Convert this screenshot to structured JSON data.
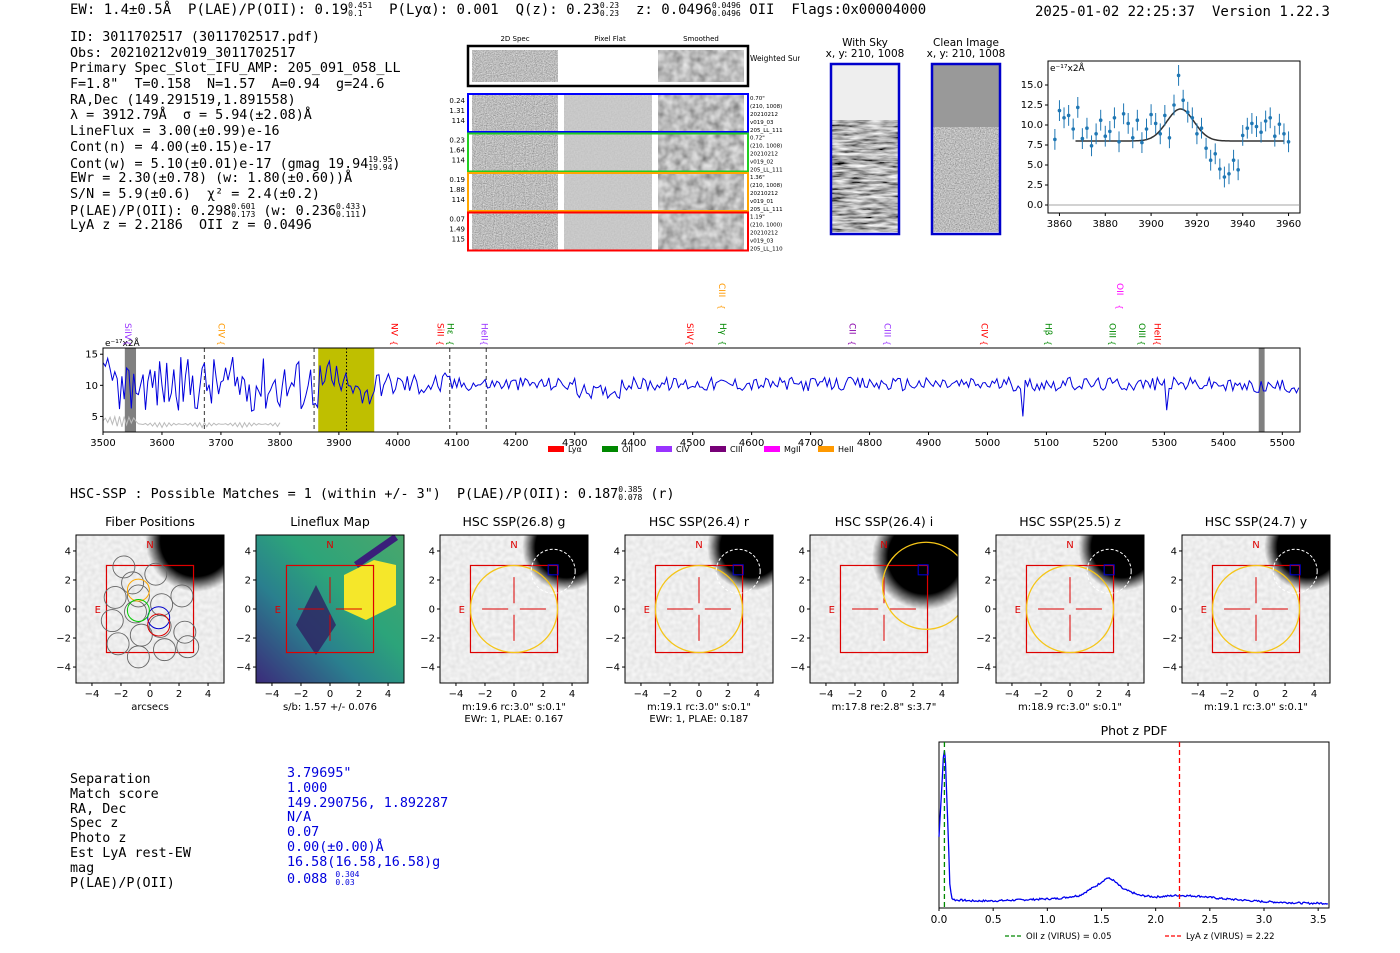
{
  "header": {
    "ew": "EW: 1.4±0.5Å",
    "plae_label": "P(LAE)/P(OII): 0.19",
    "plae_sup": "0.451",
    "plae_sub": "0.1",
    "plya": "P(Lyα): 0.001",
    "qz_label": "Q(z): 0.23",
    "qz_sup": "0.23",
    "qz_sub": "0.23",
    "z_label": "z: 0.0496",
    "z_sup": "0.0496",
    "z_sub": "0.0496",
    "z_line": "OII",
    "flags": "Flags:0x00004000",
    "datetime": "2025-01-02 22:25:37",
    "version": "Version 1.22.3"
  },
  "info": {
    "id": "ID: 3011702517 (3011702517.pdf)",
    "obs": "Obs: 20210212v019_3011702517",
    "primary": "Primary Spec_Slot_IFU_AMP: 205_091_058_LL",
    "params": "F=1.8\"  T=0.158  N=1.57  A=0.94  g=24.6",
    "radec": "RA,Dec (149.291519,1.891558)",
    "lambda": "λ = 3912.79Å  σ = 5.94(±2.08)Å",
    "lineflux": "LineFlux = 3.00(±0.99)e-16",
    "contn": "Cont(n) = 4.00(±0.15)e-17",
    "contw_main": "Cont(w) = 5.10(±0.01)e-17 (gmag 19.94",
    "contw_sup": "19.95",
    "contw_sub": "19.94",
    "contw_end": ")",
    "ewr": "EWr = 2.30(±0.78) (w: 1.80(±0.60))Å",
    "sn": "S/N = 5.9(±0.6)  χ² = 2.4(±0.2)",
    "plae_main": "P(LAE)/P(OII): 0.298",
    "plae_sup": "0.601",
    "plae_sub": "0.173",
    "plae_mid": " (w: 0.236",
    "plae_w_sup": "0.433",
    "plae_w_sub": "0.111",
    "plae_end": ")",
    "lya_z": "LyA z = 2.2186  OII z = 0.0496"
  },
  "cutouts": {
    "col_titles": [
      "2D Spec",
      "Pixel Flat",
      "Smoothed"
    ],
    "weighted_sum": "Weighted Sum",
    "rows": [
      {
        "left": [
          "0.24",
          "1.31",
          "114"
        ],
        "right": [
          "0.70\"",
          "(210, 1008)",
          "20210212",
          "v019_03",
          "205_LL_111"
        ],
        "color": "#0000ff"
      },
      {
        "left": [
          "0.23",
          "1.64",
          "114"
        ],
        "right": [
          "0.72\"",
          "(210, 1008)",
          "20210212",
          "v019_02",
          "205_LL_111"
        ],
        "color": "#22cc22"
      },
      {
        "left": [
          "0.19",
          "1.88",
          "114"
        ],
        "right": [
          "1.36\"",
          "(210, 1008)",
          "20210212",
          "v019_01",
          "205_LL_111"
        ],
        "color": "#ffa500"
      },
      {
        "left": [
          "0.07",
          "1.49",
          "115"
        ],
        "right": [
          "1.19\"",
          "(210, 1000)",
          "20210212",
          "v019_03",
          "205_LL_110"
        ],
        "color": "#ff0000"
      }
    ],
    "with_sky_title": "With Sky",
    "with_sky_xy": "x, y: 210, 1008",
    "clean_title": "Clean Image",
    "clean_xy": "x, y: 210, 1008"
  },
  "zoom_plot": {
    "ylabel": "e⁻¹⁷x2Å",
    "xlim": [
      3855,
      3965
    ],
    "ylim": [
      -1,
      18
    ],
    "xticks": [
      3860,
      3880,
      3900,
      3920,
      3940,
      3960
    ],
    "yticks": [
      0.0,
      2.5,
      5.0,
      7.5,
      10.0,
      12.5,
      15.0
    ],
    "ytick_labels": [
      "0.0",
      "2.5",
      "5.0",
      "7.5",
      "10.0",
      "12.5",
      "15.0"
    ],
    "data_x": [
      3858,
      3860,
      3862,
      3864,
      3866,
      3868,
      3870,
      3872,
      3874,
      3876,
      3878,
      3880,
      3882,
      3884,
      3886,
      3888,
      3890,
      3892,
      3894,
      3896,
      3898,
      3900,
      3902,
      3904,
      3906,
      3908,
      3910,
      3912,
      3914,
      3916,
      3918,
      3920,
      3922,
      3924,
      3926,
      3928,
      3930,
      3932,
      3934,
      3936,
      3938,
      3940,
      3942,
      3944,
      3946,
      3948,
      3950,
      3952,
      3954,
      3956,
      3958,
      3960
    ],
    "data_y": [
      8.2,
      11.8,
      10.9,
      11.2,
      9.5,
      12.2,
      8.3,
      9.6,
      7.4,
      8.9,
      10.6,
      8.6,
      9.2,
      10.9,
      7.9,
      11.4,
      10.2,
      8.4,
      10.6,
      7.8,
      9.5,
      11.3,
      10.2,
      8.9,
      11.2,
      8.4,
      12.5,
      16.2,
      13.1,
      11.6,
      10.9,
      8.9,
      9.6,
      7.1,
      5.6,
      6.4,
      4.5,
      3.5,
      3.9,
      5.6,
      4.4,
      8.7,
      9.6,
      10.2,
      9.8,
      9.1,
      10.5,
      10.9,
      8.6,
      10.1,
      8.9,
      7.9
    ],
    "model_base": 8.0,
    "model_amp": 4.0,
    "model_center": 3912.8,
    "model_sigma": 5.94,
    "model_xrange": [
      3867,
      3958
    ]
  },
  "full_spectrum": {
    "ylabel": "e⁻¹⁷x2Å",
    "xlim": [
      3500,
      5530
    ],
    "ylim": [
      2.5,
      16
    ],
    "xticks": [
      3500,
      3600,
      3700,
      3800,
      3900,
      4000,
      4100,
      4200,
      4300,
      4400,
      4500,
      4600,
      4700,
      4800,
      4900,
      5000,
      5100,
      5200,
      5300,
      5400,
      5500
    ],
    "yticks": [
      5,
      10,
      15
    ],
    "lines": [
      {
        "label": "SiIV",
        "x": 3537,
        "color": "#9933ff",
        "level": 1
      },
      {
        "label": "CIV",
        "x": 3696,
        "color": "#ff9900",
        "level": 1
      },
      {
        "label": "NV",
        "x": 3989,
        "color": "#ff0000",
        "level": 1
      },
      {
        "label": "SiII",
        "x": 4067,
        "color": "#ff0000",
        "level": 1
      },
      {
        "label": "Hε",
        "x": 4084,
        "color": "#008800",
        "level": 1
      },
      {
        "label": "HeII",
        "x": 4142,
        "color": "#9933ff",
        "level": 1
      },
      {
        "label": "CIII",
        "x": 4545,
        "color": "#ff9900",
        "level": 2
      },
      {
        "label": "SiIV",
        "x": 4490,
        "color": "#ff0000",
        "level": 1
      },
      {
        "label": "Hγ",
        "x": 4546,
        "color": "#008800",
        "level": 1
      },
      {
        "label": "CII",
        "x": 4766,
        "color": "#8800aa",
        "level": 1
      },
      {
        "label": "CIII",
        "x": 4825,
        "color": "#9933ff",
        "level": 1
      },
      {
        "label": "CIV",
        "x": 4990,
        "color": "#ff0000",
        "level": 1
      },
      {
        "label": "Hβ",
        "x": 5098,
        "color": "#008800",
        "level": 1
      },
      {
        "label": "OII",
        "x": 5220,
        "color": "#ff00ff",
        "level": 2
      },
      {
        "label": "OIII",
        "x": 5207,
        "color": "#008800",
        "level": 1
      },
      {
        "label": "OIII",
        "x": 5257,
        "color": "#008800",
        "level": 1
      },
      {
        "label": "HeII",
        "x": 5283,
        "color": "#ff0000",
        "level": 1
      }
    ],
    "dashed_markers": [
      3672,
      3858,
      4088,
      4150
    ],
    "dotted_marker": 3913,
    "highlight_band": [
      3865,
      3960
    ],
    "gray_bands": [
      [
        3537,
        3556
      ],
      [
        5460,
        5470
      ]
    ],
    "legend": [
      {
        "label": "Lyα",
        "color": "#ff0000"
      },
      {
        "label": "OII",
        "color": "#008800"
      },
      {
        "label": "CIV",
        "color": "#9933ff"
      },
      {
        "label": "CIII",
        "color": "#770077"
      },
      {
        "label": "MgII",
        "color": "#ff00ff"
      },
      {
        "label": "HeII",
        "color": "#ff9900"
      }
    ]
  },
  "hsc": {
    "summary_main": "HSC-SSP : Possible Matches = 1 (within +/- 3\")  P(LAE)/P(OII): 0.187",
    "summary_sup": "0.385",
    "summary_sub": "0.078",
    "summary_end": " (r)",
    "xticks": [
      "−4",
      "−2",
      "0",
      "2",
      "4"
    ],
    "yticks": [
      "4",
      "2",
      "0",
      "−2",
      "−4"
    ],
    "panels": [
      {
        "title": "Fiber Positions",
        "caption1": "arcsecs",
        "caption2": ""
      },
      {
        "title": "Lineflux Map",
        "caption1": "s/b: 1.57 +/- 0.076",
        "caption2": ""
      },
      {
        "title": "HSC SSP(26.8) g",
        "caption1": "m:19.6 rc:3.0\"  s:0.1\"",
        "caption2": "EWr: 1, PLAE: 0.167"
      },
      {
        "title": "HSC SSP(26.4) r",
        "caption1": "m:19.1 rc:3.0\"  s:0.1\"",
        "caption2": "EWr: 1, PLAE: 0.187"
      },
      {
        "title": "HSC SSP(26.4) i",
        "caption1": "m:17.8  re:2.8\"  s:3.7\"",
        "caption2": ""
      },
      {
        "title": "HSC SSP(25.5) z",
        "caption1": "m:18.9 rc:3.0\"  s:0.1\"",
        "caption2": ""
      },
      {
        "title": "HSC SSP(24.7) y",
        "caption1": "m:19.1 rc:3.0\"  s:0.1\"",
        "caption2": ""
      }
    ],
    "north": "N",
    "east": "E"
  },
  "match": {
    "labels": [
      "Separation",
      "Match score",
      "RA, Dec",
      "Spec z",
      "Photo z",
      "Est LyA rest-EW",
      "mag",
      "P(LAE)/P(OII)"
    ],
    "values": [
      "3.79695\"",
      "1.000",
      "149.290756, 1.892287",
      "N/A",
      "0.07",
      "0.00(±0.00)Å",
      "16.58(16.58,16.58)g",
      "0.088"
    ],
    "plae_sup": "0.304",
    "plae_sub": "0.03"
  },
  "chart_data": [
    {
      "type": "scatter",
      "title": "",
      "xlabel": "",
      "ylabel": "e⁻¹⁷x2Å",
      "xlim": [
        3855,
        3965
      ],
      "ylim": [
        -1,
        18
      ],
      "grid": false
    },
    {
      "type": "line",
      "title": "",
      "xlabel": "",
      "ylabel": "e⁻¹⁷x2Å",
      "xlim": [
        3500,
        5530
      ],
      "ylim": [
        2.5,
        16
      ],
      "legend_placement": "bottom-center"
    },
    {
      "type": "line",
      "title": "Phot z PDF",
      "xlim": [
        0,
        3.6
      ],
      "xticks": [
        0.0,
        0.5,
        1.0,
        1.5,
        2.0,
        2.5,
        3.0,
        3.5
      ],
      "xtick_labels": [
        "0.0",
        "0.5",
        "1.0",
        "1.5",
        "2.0",
        "2.5",
        "3.0",
        "3.5"
      ],
      "x": [
        0.0,
        0.02,
        0.04,
        0.05,
        0.06,
        0.08,
        0.1,
        0.12,
        0.15,
        0.2,
        0.3,
        0.5,
        0.7,
        0.9,
        1.1,
        1.3,
        1.45,
        1.55,
        1.6,
        1.7,
        1.85,
        2.0,
        2.2,
        2.4,
        2.6,
        2.8,
        3.0,
        3.2,
        3.4,
        3.6
      ],
      "y": [
        0.45,
        0.7,
        0.95,
        1.0,
        0.92,
        0.55,
        0.15,
        0.06,
        0.05,
        0.05,
        0.045,
        0.045,
        0.05,
        0.055,
        0.06,
        0.08,
        0.14,
        0.19,
        0.18,
        0.12,
        0.08,
        0.07,
        0.08,
        0.075,
        0.06,
        0.05,
        0.04,
        0.035,
        0.03,
        0.03
      ],
      "markers": [
        {
          "label": "OII z (VIRUS) = 0.05",
          "x": 0.05,
          "color": "#008800"
        },
        {
          "label": "LyA z (VIRUS) = 2.22",
          "x": 2.22,
          "color": "#ff0000"
        }
      ],
      "legend_placement": "bottom-center"
    }
  ]
}
